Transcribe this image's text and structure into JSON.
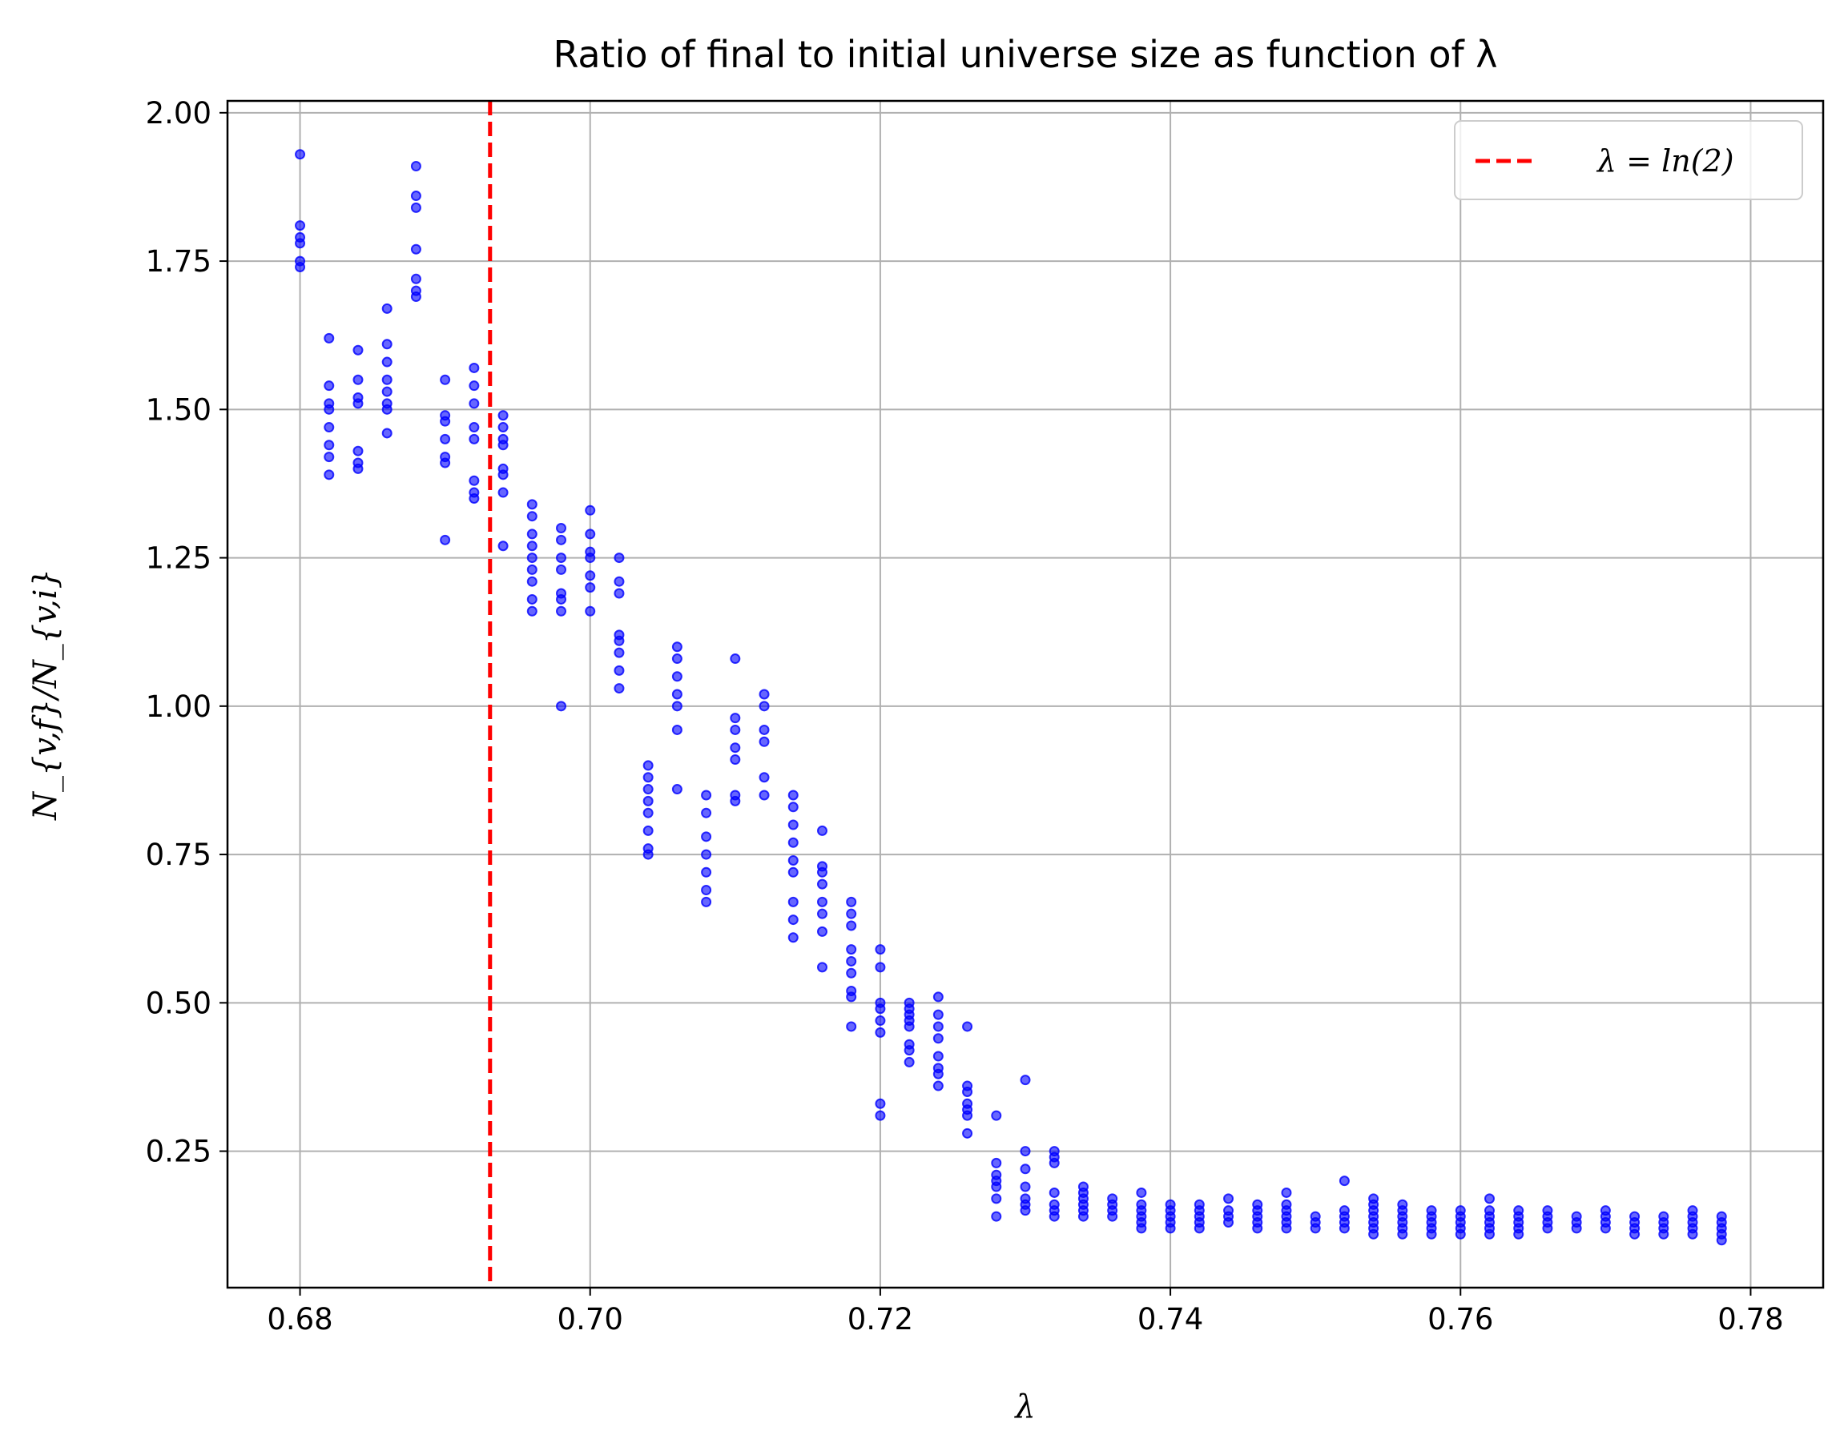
{
  "chart_data": {
    "type": "scatter",
    "title": "Ratio of final to initial universe size as function of λ",
    "xlabel": "λ",
    "ylabel": "N_{v,f}/N_{v,i}",
    "xlim": [
      0.675,
      0.785
    ],
    "ylim": [
      0.02,
      2.02
    ],
    "xticks": [
      "0.68",
      "0.70",
      "0.72",
      "0.74",
      "0.76",
      "0.78"
    ],
    "yticks": [
      "0.25",
      "0.50",
      "0.75",
      "1.00",
      "1.25",
      "1.50",
      "1.75",
      "2.00"
    ],
    "grid": true,
    "legend_position": "top-right",
    "point_color": "#0000ff",
    "reference_line": {
      "x": 0.6931,
      "label": "λ = ln(2)",
      "color": "#ff0000",
      "style": "dashed"
    },
    "series": [
      {
        "points": [
          [
            0.68,
            1.93
          ],
          [
            0.68,
            1.81
          ],
          [
            0.68,
            1.79
          ],
          [
            0.68,
            1.78
          ],
          [
            0.68,
            1.75
          ],
          [
            0.68,
            1.74
          ],
          [
            0.682,
            1.62
          ],
          [
            0.682,
            1.54
          ],
          [
            0.682,
            1.51
          ],
          [
            0.682,
            1.5
          ],
          [
            0.682,
            1.47
          ],
          [
            0.682,
            1.44
          ],
          [
            0.682,
            1.42
          ],
          [
            0.682,
            1.39
          ],
          [
            0.684,
            1.6
          ],
          [
            0.684,
            1.55
          ],
          [
            0.684,
            1.52
          ],
          [
            0.684,
            1.51
          ],
          [
            0.684,
            1.43
          ],
          [
            0.684,
            1.41
          ],
          [
            0.684,
            1.4
          ],
          [
            0.686,
            1.67
          ],
          [
            0.686,
            1.61
          ],
          [
            0.686,
            1.58
          ],
          [
            0.686,
            1.55
          ],
          [
            0.686,
            1.53
          ],
          [
            0.686,
            1.51
          ],
          [
            0.686,
            1.5
          ],
          [
            0.686,
            1.46
          ],
          [
            0.688,
            1.91
          ],
          [
            0.688,
            1.86
          ],
          [
            0.688,
            1.84
          ],
          [
            0.688,
            1.77
          ],
          [
            0.688,
            1.72
          ],
          [
            0.688,
            1.7
          ],
          [
            0.688,
            1.69
          ],
          [
            0.69,
            1.55
          ],
          [
            0.69,
            1.49
          ],
          [
            0.69,
            1.48
          ],
          [
            0.69,
            1.45
          ],
          [
            0.69,
            1.42
          ],
          [
            0.69,
            1.41
          ],
          [
            0.69,
            1.28
          ],
          [
            0.692,
            1.57
          ],
          [
            0.692,
            1.54
          ],
          [
            0.692,
            1.51
          ],
          [
            0.692,
            1.47
          ],
          [
            0.692,
            1.45
          ],
          [
            0.692,
            1.38
          ],
          [
            0.692,
            1.36
          ],
          [
            0.692,
            1.35
          ],
          [
            0.694,
            1.49
          ],
          [
            0.694,
            1.47
          ],
          [
            0.694,
            1.45
          ],
          [
            0.694,
            1.44
          ],
          [
            0.694,
            1.4
          ],
          [
            0.694,
            1.39
          ],
          [
            0.694,
            1.36
          ],
          [
            0.694,
            1.27
          ],
          [
            0.696,
            1.34
          ],
          [
            0.696,
            1.32
          ],
          [
            0.696,
            1.29
          ],
          [
            0.696,
            1.27
          ],
          [
            0.696,
            1.25
          ],
          [
            0.696,
            1.23
          ],
          [
            0.696,
            1.21
          ],
          [
            0.696,
            1.18
          ],
          [
            0.696,
            1.16
          ],
          [
            0.698,
            1.3
          ],
          [
            0.698,
            1.28
          ],
          [
            0.698,
            1.25
          ],
          [
            0.698,
            1.23
          ],
          [
            0.698,
            1.19
          ],
          [
            0.698,
            1.18
          ],
          [
            0.698,
            1.16
          ],
          [
            0.698,
            1.0
          ],
          [
            0.7,
            1.33
          ],
          [
            0.7,
            1.29
          ],
          [
            0.7,
            1.26
          ],
          [
            0.7,
            1.25
          ],
          [
            0.7,
            1.22
          ],
          [
            0.7,
            1.2
          ],
          [
            0.7,
            1.16
          ],
          [
            0.702,
            1.25
          ],
          [
            0.702,
            1.21
          ],
          [
            0.702,
            1.19
          ],
          [
            0.702,
            1.12
          ],
          [
            0.702,
            1.11
          ],
          [
            0.702,
            1.09
          ],
          [
            0.702,
            1.06
          ],
          [
            0.702,
            1.03
          ],
          [
            0.704,
            0.9
          ],
          [
            0.704,
            0.88
          ],
          [
            0.704,
            0.86
          ],
          [
            0.704,
            0.84
          ],
          [
            0.704,
            0.82
          ],
          [
            0.704,
            0.79
          ],
          [
            0.704,
            0.76
          ],
          [
            0.704,
            0.75
          ],
          [
            0.706,
            1.1
          ],
          [
            0.706,
            1.08
          ],
          [
            0.706,
            1.05
          ],
          [
            0.706,
            1.02
          ],
          [
            0.706,
            1.0
          ],
          [
            0.706,
            0.96
          ],
          [
            0.706,
            0.86
          ],
          [
            0.708,
            0.85
          ],
          [
            0.708,
            0.82
          ],
          [
            0.708,
            0.78
          ],
          [
            0.708,
            0.75
          ],
          [
            0.708,
            0.72
          ],
          [
            0.708,
            0.69
          ],
          [
            0.708,
            0.67
          ],
          [
            0.71,
            1.08
          ],
          [
            0.71,
            0.98
          ],
          [
            0.71,
            0.96
          ],
          [
            0.71,
            0.93
          ],
          [
            0.71,
            0.91
          ],
          [
            0.71,
            0.85
          ],
          [
            0.71,
            0.84
          ],
          [
            0.712,
            1.02
          ],
          [
            0.712,
            1.0
          ],
          [
            0.712,
            0.96
          ],
          [
            0.712,
            0.94
          ],
          [
            0.712,
            0.88
          ],
          [
            0.712,
            0.85
          ],
          [
            0.714,
            0.85
          ],
          [
            0.714,
            0.83
          ],
          [
            0.714,
            0.8
          ],
          [
            0.714,
            0.77
          ],
          [
            0.714,
            0.74
          ],
          [
            0.714,
            0.72
          ],
          [
            0.714,
            0.67
          ],
          [
            0.714,
            0.64
          ],
          [
            0.714,
            0.61
          ],
          [
            0.716,
            0.79
          ],
          [
            0.716,
            0.73
          ],
          [
            0.716,
            0.72
          ],
          [
            0.716,
            0.7
          ],
          [
            0.716,
            0.67
          ],
          [
            0.716,
            0.65
          ],
          [
            0.716,
            0.62
          ],
          [
            0.716,
            0.56
          ],
          [
            0.718,
            0.67
          ],
          [
            0.718,
            0.65
          ],
          [
            0.718,
            0.63
          ],
          [
            0.718,
            0.59
          ],
          [
            0.718,
            0.57
          ],
          [
            0.718,
            0.55
          ],
          [
            0.718,
            0.52
          ],
          [
            0.718,
            0.51
          ],
          [
            0.718,
            0.46
          ],
          [
            0.72,
            0.59
          ],
          [
            0.72,
            0.56
          ],
          [
            0.72,
            0.5
          ],
          [
            0.72,
            0.49
          ],
          [
            0.72,
            0.47
          ],
          [
            0.72,
            0.45
          ],
          [
            0.72,
            0.33
          ],
          [
            0.72,
            0.31
          ],
          [
            0.722,
            0.5
          ],
          [
            0.722,
            0.49
          ],
          [
            0.722,
            0.48
          ],
          [
            0.722,
            0.47
          ],
          [
            0.722,
            0.46
          ],
          [
            0.722,
            0.43
          ],
          [
            0.722,
            0.42
          ],
          [
            0.722,
            0.4
          ],
          [
            0.724,
            0.51
          ],
          [
            0.724,
            0.48
          ],
          [
            0.724,
            0.46
          ],
          [
            0.724,
            0.44
          ],
          [
            0.724,
            0.41
          ],
          [
            0.724,
            0.39
          ],
          [
            0.724,
            0.38
          ],
          [
            0.724,
            0.36
          ],
          [
            0.726,
            0.46
          ],
          [
            0.726,
            0.36
          ],
          [
            0.726,
            0.35
          ],
          [
            0.726,
            0.33
          ],
          [
            0.726,
            0.32
          ],
          [
            0.726,
            0.31
          ],
          [
            0.726,
            0.28
          ],
          [
            0.728,
            0.31
          ],
          [
            0.728,
            0.23
          ],
          [
            0.728,
            0.21
          ],
          [
            0.728,
            0.2
          ],
          [
            0.728,
            0.19
          ],
          [
            0.728,
            0.17
          ],
          [
            0.728,
            0.14
          ],
          [
            0.73,
            0.37
          ],
          [
            0.73,
            0.25
          ],
          [
            0.73,
            0.22
          ],
          [
            0.73,
            0.19
          ],
          [
            0.73,
            0.17
          ],
          [
            0.73,
            0.16
          ],
          [
            0.73,
            0.15
          ],
          [
            0.732,
            0.25
          ],
          [
            0.732,
            0.24
          ],
          [
            0.732,
            0.23
          ],
          [
            0.732,
            0.18
          ],
          [
            0.732,
            0.16
          ],
          [
            0.732,
            0.15
          ],
          [
            0.732,
            0.14
          ],
          [
            0.734,
            0.19
          ],
          [
            0.734,
            0.18
          ],
          [
            0.734,
            0.17
          ],
          [
            0.734,
            0.16
          ],
          [
            0.734,
            0.15
          ],
          [
            0.734,
            0.14
          ],
          [
            0.736,
            0.17
          ],
          [
            0.736,
            0.16
          ],
          [
            0.736,
            0.15
          ],
          [
            0.736,
            0.14
          ],
          [
            0.738,
            0.18
          ],
          [
            0.738,
            0.16
          ],
          [
            0.738,
            0.15
          ],
          [
            0.738,
            0.14
          ],
          [
            0.738,
            0.13
          ],
          [
            0.738,
            0.12
          ],
          [
            0.74,
            0.16
          ],
          [
            0.74,
            0.15
          ],
          [
            0.74,
            0.14
          ],
          [
            0.74,
            0.13
          ],
          [
            0.74,
            0.12
          ],
          [
            0.742,
            0.16
          ],
          [
            0.742,
            0.15
          ],
          [
            0.742,
            0.14
          ],
          [
            0.742,
            0.13
          ],
          [
            0.742,
            0.12
          ],
          [
            0.744,
            0.17
          ],
          [
            0.744,
            0.15
          ],
          [
            0.744,
            0.14
          ],
          [
            0.744,
            0.13
          ],
          [
            0.746,
            0.16
          ],
          [
            0.746,
            0.15
          ],
          [
            0.746,
            0.14
          ],
          [
            0.746,
            0.13
          ],
          [
            0.746,
            0.12
          ],
          [
            0.748,
            0.18
          ],
          [
            0.748,
            0.16
          ],
          [
            0.748,
            0.15
          ],
          [
            0.748,
            0.14
          ],
          [
            0.748,
            0.13
          ],
          [
            0.748,
            0.12
          ],
          [
            0.75,
            0.14
          ],
          [
            0.75,
            0.13
          ],
          [
            0.75,
            0.12
          ],
          [
            0.752,
            0.2
          ],
          [
            0.752,
            0.15
          ],
          [
            0.752,
            0.14
          ],
          [
            0.752,
            0.13
          ],
          [
            0.752,
            0.12
          ],
          [
            0.754,
            0.17
          ],
          [
            0.754,
            0.16
          ],
          [
            0.754,
            0.15
          ],
          [
            0.754,
            0.14
          ],
          [
            0.754,
            0.13
          ],
          [
            0.754,
            0.12
          ],
          [
            0.754,
            0.11
          ],
          [
            0.756,
            0.16
          ],
          [
            0.756,
            0.15
          ],
          [
            0.756,
            0.14
          ],
          [
            0.756,
            0.13
          ],
          [
            0.756,
            0.12
          ],
          [
            0.756,
            0.11
          ],
          [
            0.758,
            0.15
          ],
          [
            0.758,
            0.14
          ],
          [
            0.758,
            0.13
          ],
          [
            0.758,
            0.12
          ],
          [
            0.758,
            0.11
          ],
          [
            0.76,
            0.15
          ],
          [
            0.76,
            0.14
          ],
          [
            0.76,
            0.13
          ],
          [
            0.76,
            0.12
          ],
          [
            0.76,
            0.11
          ],
          [
            0.762,
            0.17
          ],
          [
            0.762,
            0.15
          ],
          [
            0.762,
            0.14
          ],
          [
            0.762,
            0.13
          ],
          [
            0.762,
            0.12
          ],
          [
            0.762,
            0.11
          ],
          [
            0.764,
            0.15
          ],
          [
            0.764,
            0.14
          ],
          [
            0.764,
            0.13
          ],
          [
            0.764,
            0.12
          ],
          [
            0.764,
            0.11
          ],
          [
            0.766,
            0.15
          ],
          [
            0.766,
            0.14
          ],
          [
            0.766,
            0.13
          ],
          [
            0.766,
            0.12
          ],
          [
            0.768,
            0.14
          ],
          [
            0.768,
            0.13
          ],
          [
            0.768,
            0.12
          ],
          [
            0.77,
            0.15
          ],
          [
            0.77,
            0.14
          ],
          [
            0.77,
            0.13
          ],
          [
            0.77,
            0.12
          ],
          [
            0.772,
            0.14
          ],
          [
            0.772,
            0.13
          ],
          [
            0.772,
            0.12
          ],
          [
            0.772,
            0.11
          ],
          [
            0.774,
            0.14
          ],
          [
            0.774,
            0.13
          ],
          [
            0.774,
            0.12
          ],
          [
            0.774,
            0.11
          ],
          [
            0.776,
            0.15
          ],
          [
            0.776,
            0.14
          ],
          [
            0.776,
            0.13
          ],
          [
            0.776,
            0.12
          ],
          [
            0.776,
            0.11
          ],
          [
            0.778,
            0.14
          ],
          [
            0.778,
            0.13
          ],
          [
            0.778,
            0.12
          ],
          [
            0.778,
            0.11
          ],
          [
            0.778,
            0.1
          ]
        ]
      }
    ]
  }
}
